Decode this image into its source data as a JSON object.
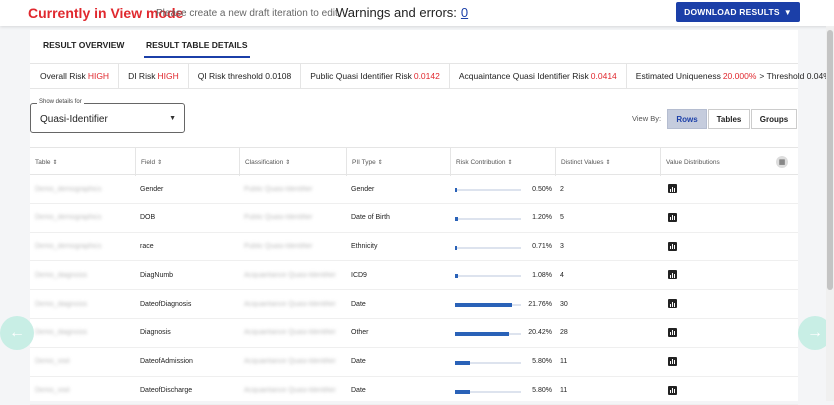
{
  "header": {
    "view_mode": "Currently in View mode",
    "view_note": "Please create a new draft iteration to edit",
    "warnings_label": "Warnings and errors:",
    "warnings_count": "0",
    "download_label": "DOWNLOAD RESULTS"
  },
  "tabs": [
    {
      "label": "RESULT OVERVIEW",
      "active": false
    },
    {
      "label": "RESULT TABLE DETAILS",
      "active": true
    }
  ],
  "metrics": [
    {
      "label": "Overall Risk",
      "value": "HIGH",
      "suffix": ""
    },
    {
      "label": "DI Risk",
      "value": "HIGH",
      "suffix": ""
    },
    {
      "label": "QI Risk threshold 0.0108",
      "value": "",
      "suffix": ""
    },
    {
      "label": "Public Quasi Identifier Risk",
      "value": "0.0142",
      "suffix": ""
    },
    {
      "label": "Acquaintance Quasi Identifier Risk",
      "value": "0.0414",
      "suffix": ""
    },
    {
      "label": "Estimated Uniqueness",
      "value": "20.000%",
      "suffix": "> Threshold 0.04%"
    }
  ],
  "details_select": {
    "label": "Show details for",
    "value": "Quasi-Identifier"
  },
  "view_by": {
    "label": "View By:",
    "options": [
      "Rows",
      "Tables",
      "Groups"
    ],
    "selected": "Rows"
  },
  "table": {
    "columns": [
      "Table",
      "Field",
      "Classification",
      "PII Type",
      "Risk Contribution",
      "Distinct Values",
      "Value Distributions"
    ],
    "rows": [
      {
        "table": "Demo_demographics",
        "field": "Gender",
        "classification": "Public Quasi-Identifier",
        "pii_type": "Gender",
        "risk": "0.50%",
        "risk_pct": 0.5,
        "distinct": "2"
      },
      {
        "table": "Demo_demographics",
        "field": "DOB",
        "classification": "Public Quasi-Identifier",
        "pii_type": "Date of Birth",
        "risk": "1.20%",
        "risk_pct": 1.2,
        "distinct": "5"
      },
      {
        "table": "Demo_demographics",
        "field": "race",
        "classification": "Public Quasi-Identifier",
        "pii_type": "Ethnicity",
        "risk": "0.71%",
        "risk_pct": 0.71,
        "distinct": "3"
      },
      {
        "table": "Demo_diagnosis",
        "field": "DiagNumb",
        "classification": "Acquaintance Quasi-Identifier",
        "pii_type": "ICD9",
        "risk": "1.08%",
        "risk_pct": 1.08,
        "distinct": "4"
      },
      {
        "table": "Demo_diagnosis",
        "field": "DateofDiagnosis",
        "classification": "Acquaintance Quasi-Identifier",
        "pii_type": "Date",
        "risk": "21.76%",
        "risk_pct": 21.76,
        "distinct": "30"
      },
      {
        "table": "Demo_diagnosis",
        "field": "Diagnosis",
        "classification": "Acquaintance Quasi-Identifier",
        "pii_type": "Other",
        "risk": "20.42%",
        "risk_pct": 20.42,
        "distinct": "28"
      },
      {
        "table": "Demo_visit",
        "field": "DateofAdmission",
        "classification": "Acquaintance Quasi-Identifier",
        "pii_type": "Date",
        "risk": "5.80%",
        "risk_pct": 5.8,
        "distinct": "11"
      },
      {
        "table": "Demo_visit",
        "field": "DateofDischarge",
        "classification": "Acquaintance Quasi-Identifier",
        "pii_type": "Date",
        "risk": "5.80%",
        "risk_pct": 5.8,
        "distinct": "11"
      }
    ]
  },
  "colors": {
    "accent": "#1b3fa8",
    "alert": "#e0282e",
    "nav_arrow": "#c8eee5"
  }
}
